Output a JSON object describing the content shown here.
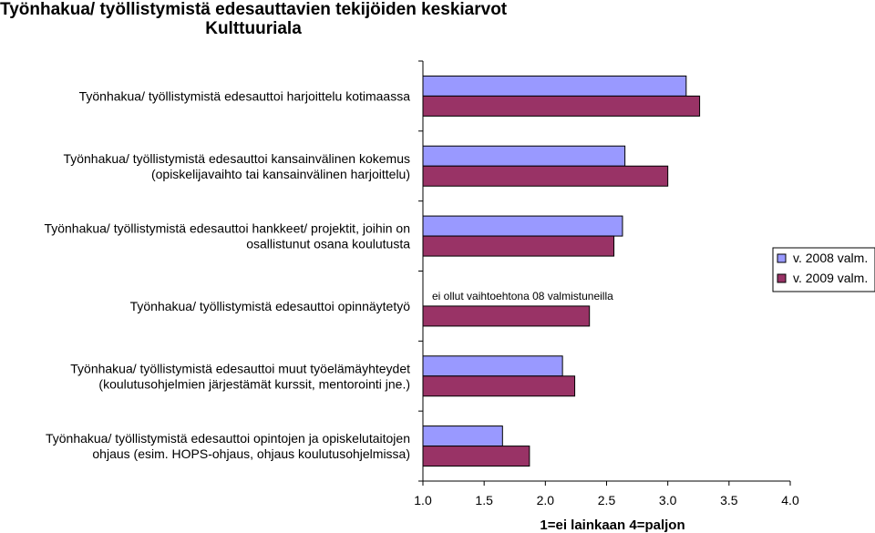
{
  "chart_data": {
    "type": "bar",
    "orientation": "horizontal",
    "title": "Työnhakua/ työllistymistä edesauttavien tekijöiden keskiarvot",
    "subtitle": "Kulttuuriala",
    "xlabel": "1=ei lainkaan 4=paljon",
    "xlim": [
      1.0,
      4.0
    ],
    "xticks": [
      "1.0",
      "1.5",
      "2.0",
      "2.5",
      "3.0",
      "3.5",
      "4.0"
    ],
    "categories": [
      [
        "Työnhakua/ työllistymistä edesauttoi harjoittelu kotimaassa"
      ],
      [
        "Työnhakua/ työllistymistä edesauttoi kansainvälinen kokemus",
        "(opiskelijavaihto tai kansainvälinen harjoittelu)"
      ],
      [
        "Työnhakua/ työllistymistä edesauttoi hankkeet/ projektit, joihin on",
        "osallistunut osana koulutusta"
      ],
      [
        "Työnhakua/ työllistymistä edesauttoi opinnäytetyö"
      ],
      [
        "Työnhakua/ työllistymistä edesauttoi muut työelämäyhteydet",
        "(koulutusohjelmien järjestämät kurssit, mentorointi jne.)"
      ],
      [
        "Työnhakua/ työllistymistä edesauttoi opintojen ja opiskelutaitojen",
        "ohjaus (esim. HOPS-ohjaus, ohjaus koulutusohjelmissa)"
      ]
    ],
    "series": [
      {
        "name": "v. 2008 valm.",
        "color": "#9999ff",
        "values": [
          3.15,
          2.65,
          2.63,
          null,
          2.14,
          1.65
        ]
      },
      {
        "name": "v. 2009 valm.",
        "color": "#993366",
        "values": [
          3.26,
          3.0,
          2.56,
          2.36,
          2.24,
          1.87
        ]
      }
    ],
    "annotations": [
      {
        "category_index": 3,
        "series_index": 0,
        "text": "ei ollut vaihtoehtona 08 valmistuneilla"
      }
    ],
    "legend": "right",
    "grid": false
  }
}
